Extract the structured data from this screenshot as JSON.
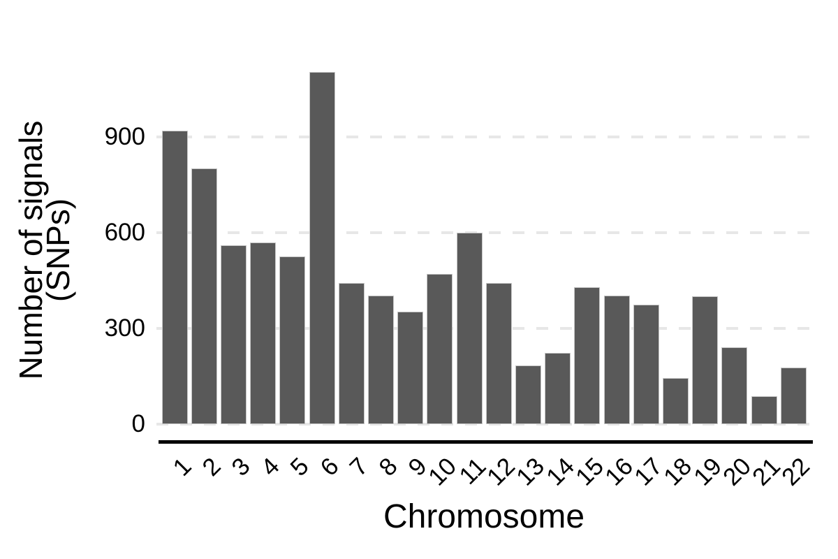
{
  "chart_data": {
    "type": "bar",
    "title": "",
    "xlabel": "Chromosome",
    "ylabel": "Number of signals (SNPs)",
    "ylabel_line1": "Number of signals",
    "ylabel_line2": "(SNPs)",
    "categories": [
      "1",
      "2",
      "3",
      "4",
      "5",
      "6",
      "7",
      "8",
      "9",
      "10",
      "11",
      "12",
      "13",
      "14",
      "15",
      "16",
      "17",
      "18",
      "19",
      "20",
      "21",
      "22"
    ],
    "values": [
      920,
      801,
      561,
      570,
      526,
      1104,
      442,
      403,
      352,
      471,
      600,
      442,
      184,
      224,
      429,
      403,
      374,
      145,
      401,
      241,
      88,
      177
    ],
    "yticks": [
      0,
      300,
      600,
      900
    ],
    "ylim": [
      0,
      1150
    ],
    "grid": {
      "horizontal": true,
      "vertical": false,
      "style": "dashed"
    },
    "legend_position": "none",
    "colors": {
      "bar_fill": "#595959",
      "bar_outline": "#c6c6c6",
      "gridline": "#e7e7e7",
      "axis_line": "#000000",
      "text": "#000000",
      "background": "#ffffff"
    }
  }
}
